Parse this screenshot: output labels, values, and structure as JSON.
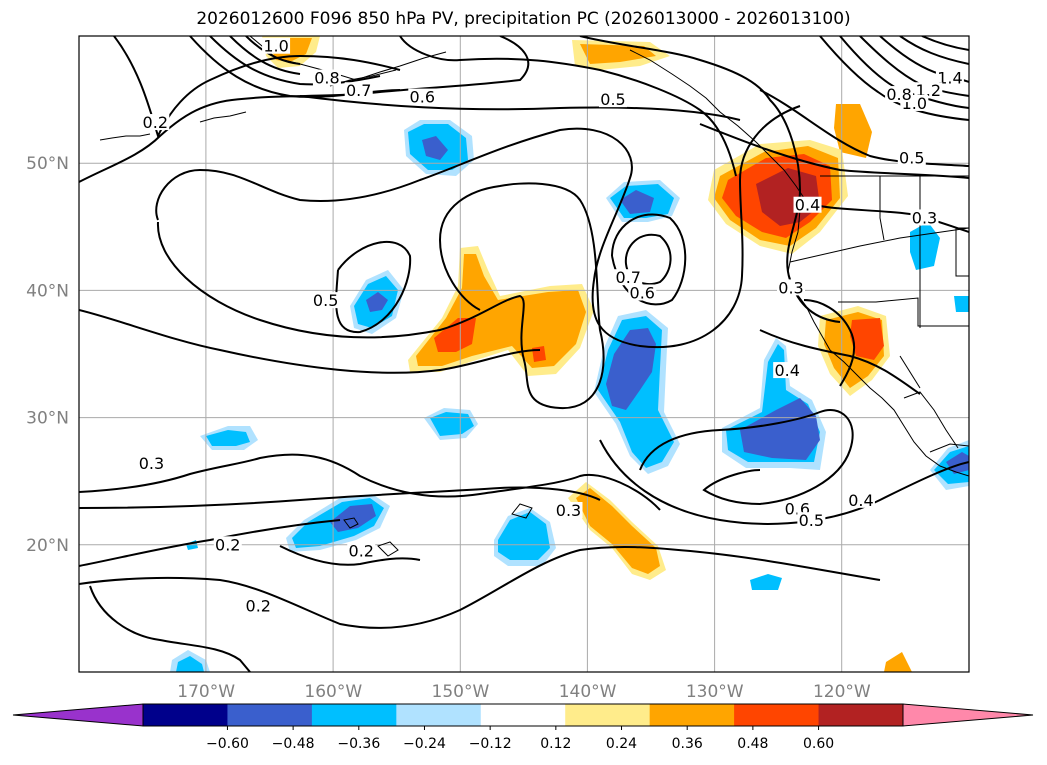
{
  "title": "2026012600 F096 850 hPa PV, precipitation PC (2026013000 - 2026013100)",
  "chart_data": {
    "type": "contour-map",
    "title": "2026012600 F096 850 hPa PV, precipitation PC (2026013000 - 2026013100)",
    "map": {
      "lon_range": [
        -180,
        -110
      ],
      "lat_range": [
        10,
        60
      ],
      "lat_ticks": [
        {
          "value": 20,
          "label": "20°N"
        },
        {
          "value": 30,
          "label": "30°N"
        },
        {
          "value": 40,
          "label": "40°N"
        },
        {
          "value": 50,
          "label": "50°N"
        }
      ],
      "lon_ticks": [
        {
          "value": -170,
          "label": "170°W"
        },
        {
          "value": -160,
          "label": "160°W"
        },
        {
          "value": -150,
          "label": "150°W"
        },
        {
          "value": -140,
          "label": "140°W"
        },
        {
          "value": -130,
          "label": "130°W"
        },
        {
          "value": -120,
          "label": "120°W"
        }
      ],
      "grid": true
    },
    "colorbar": {
      "ticks": [
        "−0.60",
        "−0.48",
        "−0.36",
        "−0.24",
        "−0.12",
        "0.12",
        "0.24",
        "0.36",
        "0.48",
        "0.60"
      ],
      "colors": [
        "#9932cc",
        "#00008b",
        "#3a5fcd",
        "#00bfff",
        "#b0e2ff",
        "#ffffff",
        "#ffec8b",
        "#ffa500",
        "#ff4500",
        "#b22222",
        "#ff88aa"
      ],
      "extend": "both"
    },
    "pv_contour_labels": [
      {
        "text": "0.2",
        "lon": -174,
        "lat": 53
      },
      {
        "text": "1.0",
        "lon": -164.5,
        "lat": 59
      },
      {
        "text": "0.8",
        "lon": -160.5,
        "lat": 56.5
      },
      {
        "text": "0.7",
        "lon": -158,
        "lat": 55.5
      },
      {
        "text": "0.6",
        "lon": -153,
        "lat": 55
      },
      {
        "text": "0.5",
        "lon": -138,
        "lat": 54.8
      },
      {
        "text": "1.4",
        "lon": -111.5,
        "lat": 56.5
      },
      {
        "text": "1.2",
        "lon": -113.2,
        "lat": 55.5
      },
      {
        "text": "1.0",
        "lon": -114.3,
        "lat": 54.5
      },
      {
        "text": "0.8",
        "lon": -115.5,
        "lat": 55.2
      },
      {
        "text": "0.5",
        "lon": -114.5,
        "lat": 50.2
      },
      {
        "text": "0.3",
        "lon": -113.5,
        "lat": 45.5
      },
      {
        "text": "0.4",
        "lon": -122.7,
        "lat": 46.5
      },
      {
        "text": "0.3",
        "lon": -124,
        "lat": 40
      },
      {
        "text": "0.4",
        "lon": -124.3,
        "lat": 33.5
      },
      {
        "text": "0.7",
        "lon": -136.8,
        "lat": 40.8
      },
      {
        "text": "0.6",
        "lon": -135.7,
        "lat": 39.6
      },
      {
        "text": "0.5",
        "lon": -160.6,
        "lat": 39
      },
      {
        "text": "0.3",
        "lon": -174.3,
        "lat": 26.2
      },
      {
        "text": "0.2",
        "lon": -168.3,
        "lat": 19.8
      },
      {
        "text": "0.2",
        "lon": -157.8,
        "lat": 19.3
      },
      {
        "text": "0.3",
        "lon": -141.5,
        "lat": 22.5
      },
      {
        "text": "0.6",
        "lon": -123.5,
        "lat": 22.6
      },
      {
        "text": "0.5",
        "lon": -122.4,
        "lat": 21.7
      },
      {
        "text": "0.4",
        "lon": -118.5,
        "lat": 23.3
      },
      {
        "text": "0.2",
        "lon": -165.9,
        "lat": 15
      }
    ]
  }
}
